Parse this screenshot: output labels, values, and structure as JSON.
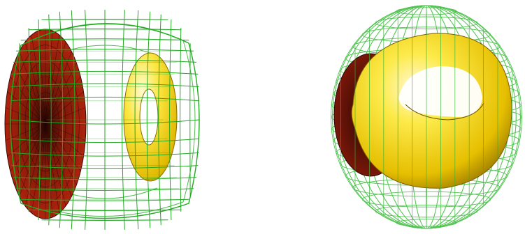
{
  "figures": [
    {
      "id": "left",
      "elements": [
        "wireframe-rounded-box",
        "red-disk",
        "yellow-torus-ring"
      ]
    },
    {
      "id": "right",
      "elements": [
        "wireframe-ellipsoid",
        "red-disk",
        "yellow-torus"
      ]
    }
  ],
  "colors": {
    "wireframe": "#22aa22",
    "wireframe_light": "#66cc66",
    "disk": "#b3220f",
    "disk_dark": "#3a0c05",
    "torus_light": "#fff59a",
    "torus_mid": "#f2d000",
    "torus_dark": "#9a7a00",
    "background": "#ffffff"
  }
}
